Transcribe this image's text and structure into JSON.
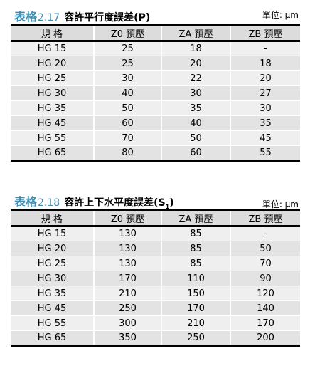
{
  "table1": {
    "tag": "表格",
    "number": "2.17",
    "title": "容許平行度誤差(P)",
    "unit": "單位: µm",
    "headers": [
      "規 格",
      "Z0 預壓",
      "ZA 預壓",
      "ZB 預壓"
    ],
    "rows": [
      [
        "HG 15",
        "25",
        "18",
        "-"
      ],
      [
        "HG 20",
        "25",
        "20",
        "18"
      ],
      [
        "HG 25",
        "30",
        "22",
        "20"
      ],
      [
        "HG 30",
        "40",
        "30",
        "27"
      ],
      [
        "HG 35",
        "50",
        "35",
        "30"
      ],
      [
        "HG 45",
        "60",
        "40",
        "35"
      ],
      [
        "HG 55",
        "70",
        "50",
        "45"
      ],
      [
        "HG 65",
        "80",
        "60",
        "55"
      ]
    ]
  },
  "table2": {
    "tag": "表格",
    "number": "2.18",
    "title": "容許上下水平度誤差(S",
    "title_sub": "1",
    "title_end": ")",
    "unit": "單位: µm",
    "headers": [
      "規 格",
      "Z0 預壓",
      "ZA 預壓",
      "ZB 預壓"
    ],
    "rows": [
      [
        "HG 15",
        "130",
        "85",
        "-"
      ],
      [
        "HG 20",
        "130",
        "85",
        "50"
      ],
      [
        "HG 25",
        "130",
        "85",
        "70"
      ],
      [
        "HG 30",
        "170",
        "110",
        "90"
      ],
      [
        "HG 35",
        "210",
        "150",
        "120"
      ],
      [
        "HG 45",
        "250",
        "170",
        "140"
      ],
      [
        "HG 55",
        "300",
        "210",
        "170"
      ],
      [
        "HG 65",
        "350",
        "250",
        "200"
      ]
    ]
  }
}
